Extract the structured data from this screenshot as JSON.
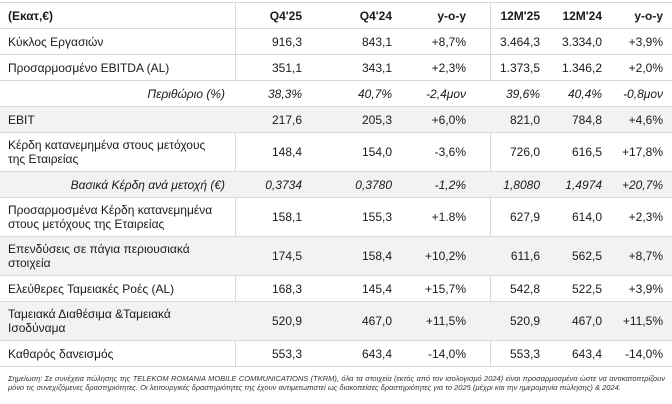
{
  "colors": {
    "shaded_row": "#f2f2f2",
    "grid_line": "#d9d9d9",
    "text": "#1a1a1a",
    "footnote_text": "#333333"
  },
  "table": {
    "unit_label": "(Εκατ,€)",
    "columns": [
      {
        "label": "Q4'25"
      },
      {
        "label": "Q4'24"
      },
      {
        "label": "y-o-y"
      },
      {
        "label": "12M'25"
      },
      {
        "label": "12M'24"
      },
      {
        "label": "y-o-y"
      }
    ],
    "rows": [
      {
        "label": "Κύκλος Εργασιών",
        "italic": false,
        "shaded": false,
        "separators": true,
        "values": [
          "916,3",
          "843,1",
          "+8,7%",
          "3.464,3",
          "3.334,0",
          "+3,9%"
        ]
      },
      {
        "label": "Προσαρμοσμένο EBITDA (AL)",
        "italic": false,
        "shaded": false,
        "separators": true,
        "values": [
          "351,1",
          "343,1",
          "+2,3%",
          "1.373,5",
          "1.346,2",
          "+2,0%"
        ]
      },
      {
        "label": "Περιθώριο (%)",
        "italic": true,
        "shaded": false,
        "separators": false,
        "values": [
          "38,3%",
          "40,7%",
          "-2,4μον",
          "39,6%",
          "40,4%",
          "-0,8μον"
        ]
      },
      {
        "label": "EBIT",
        "italic": false,
        "shaded": true,
        "separators": false,
        "values": [
          "217,6",
          "205,3",
          "+6,0%",
          "821,0",
          "784,8",
          "+4,6%"
        ]
      },
      {
        "label": "Κέρδη κατανεμημένα στους μετόχους της Εταιρείας",
        "italic": false,
        "shaded": false,
        "separators": true,
        "values": [
          "148,4",
          "154,0",
          "-3,6%",
          "726,0",
          "616,5",
          "+17,8%"
        ]
      },
      {
        "label": "Βασικά Κέρδη ανά μετοχή (€)",
        "italic": true,
        "shaded": true,
        "separators": false,
        "values": [
          "0,3734",
          "0,3780",
          "-1,2%",
          "1,8080",
          "1,4974",
          "+20,7%"
        ]
      },
      {
        "label": "Προσαρμοσμένα Κέρδη κατανεμημένα στους μετόχους της Εταιρείας",
        "italic": false,
        "shaded": false,
        "separators": true,
        "values": [
          "158,1",
          "155,3",
          "+1.8%",
          "627,9",
          "614,0",
          "+2,3%"
        ]
      },
      {
        "label": "Επενδύσεις σε πάγια περιουσιακά στοιχεία",
        "italic": false,
        "shaded": true,
        "separators": false,
        "values": [
          "174,5",
          "158,4",
          "+10,2%",
          "611,6",
          "562,5",
          "+8,7%"
        ]
      },
      {
        "label": "Ελεύθερες Ταμειακές Ροές (AL)",
        "italic": false,
        "shaded": false,
        "separators": true,
        "values": [
          "168,3",
          "145,4",
          "+15,7%",
          "542,8",
          "522,5",
          "+3,9%"
        ]
      },
      {
        "label": "Ταμειακά Διαθέσιμα &Ταμειακά Ισοδύναμα",
        "italic": false,
        "shaded": true,
        "separators": false,
        "values": [
          "520,9",
          "467,0",
          "+11,5%",
          "520,9",
          "467,0",
          "+11,5%"
        ]
      },
      {
        "label": "Καθαρός δανεισμός",
        "italic": false,
        "shaded": false,
        "separators": true,
        "values": [
          "553,3",
          "643,4",
          "-14,0%",
          "553,3",
          "643,4",
          "-14,0%"
        ]
      }
    ]
  },
  "footnote": "Σημείωση: Σε συνέχεια πώλησης της TELEKOM ROMANIA MOBILE COMMUNICATIONS (TKRM), όλα τα στοιχεία (εκτός από τον ισολογισμό 2024) είναι προσαρμοσμένα ώστε να αντικατοπτρίζουν μόνο τις συνεχιζόμενες δραστηριότητες. Οι λειτουργικές δραστηριότητες της έχουν αντιμετωπιστεί ως διακοπείσες δραστηριότητες για το 2025 (μέχρι και την ημερομηνία πώλησης) & 2024."
}
